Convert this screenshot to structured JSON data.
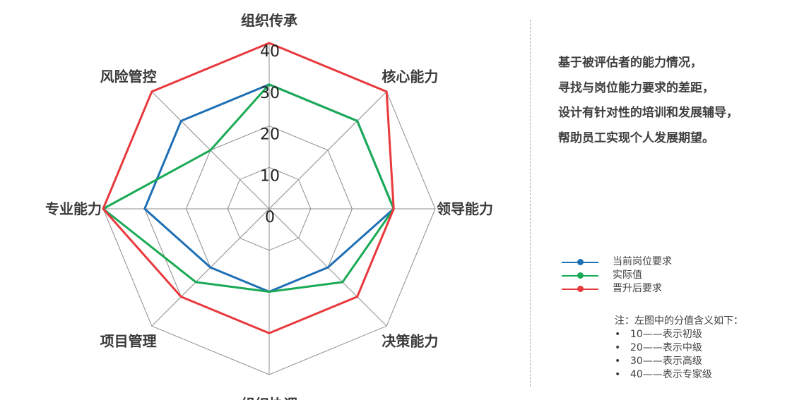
{
  "chart_data": {
    "type": "radar",
    "axes": [
      "组织传承",
      "核心能力",
      "领导能力",
      "决策能力",
      "组织协调",
      "项目管理",
      "专业能力",
      "风险管控"
    ],
    "rlim": [
      0,
      40
    ],
    "ticks": [
      "0",
      "10",
      "20",
      "30",
      "40"
    ],
    "grid": true,
    "series": [
      {
        "name": "当前岗位要求",
        "color": "#1f6fb5",
        "values": [
          30,
          30,
          30,
          20,
          20,
          20,
          30,
          30
        ]
      },
      {
        "name": "实际值",
        "color": "#1aaa55",
        "values": [
          30,
          30,
          30,
          25,
          20,
          25,
          40,
          20
        ]
      },
      {
        "name": "晋升后要求",
        "color": "#e8393d",
        "values": [
          40,
          40,
          30,
          30,
          30,
          30,
          40,
          40
        ]
      }
    ]
  },
  "description": {
    "lines": [
      "基于被评估者的能力情况，",
      "寻找与岗位能力要求的差距，",
      "设计有针对性的培训和发展辅导，",
      "帮助员工实现个人发展期望。"
    ]
  },
  "note": {
    "title": "注：左图中的分值含义如下：",
    "bullet": "•",
    "items": [
      "10——表示初级",
      "20——表示中级",
      "30——表示高级",
      "40——表示专家级"
    ]
  }
}
